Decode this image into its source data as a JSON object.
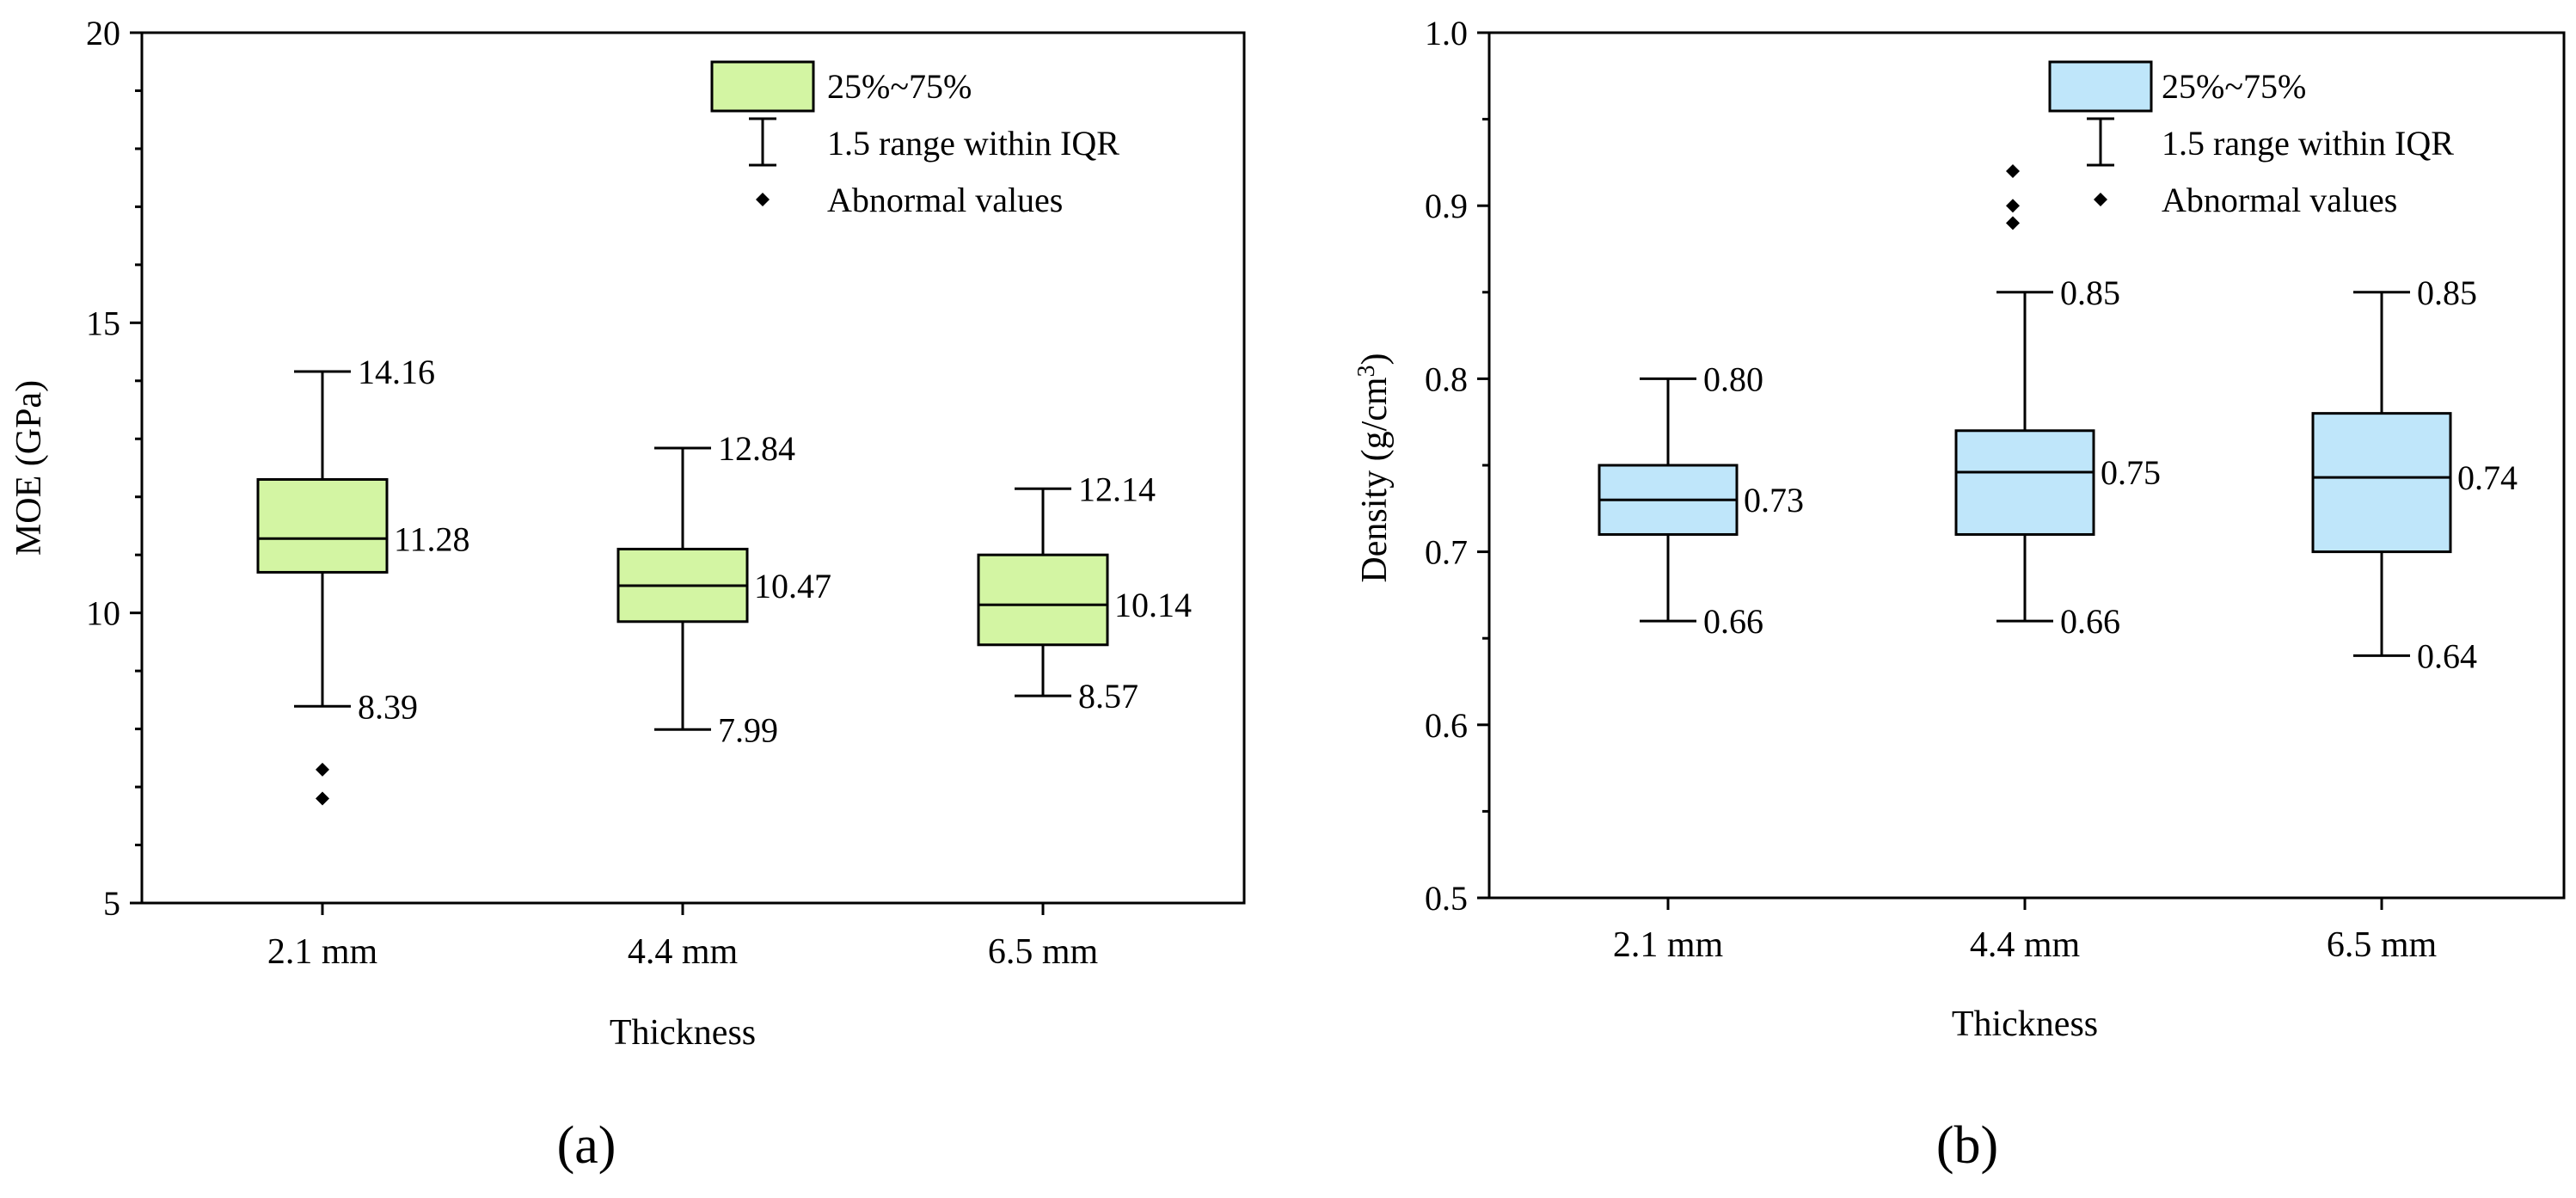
{
  "figure": {
    "panels": [
      {
        "label": "(a)"
      },
      {
        "label": "(b)"
      }
    ]
  },
  "chart_data": [
    {
      "type": "box",
      "panel": "(a)",
      "xlabel": "Thickness",
      "ylabel": "MOE (GPa)",
      "ylim": [
        5,
        20
      ],
      "yticks": [
        5,
        10,
        15,
        20
      ],
      "ytick_labels": [
        "5",
        "10",
        "15",
        "20"
      ],
      "categories": [
        "2.1 mm",
        "4.4 mm",
        "6.5 mm"
      ],
      "box_color": "#d3f5a3",
      "boxes": [
        {
          "category": "2.1 mm",
          "q1": 10.7,
          "median": 11.28,
          "q3": 12.3,
          "whisker_low": 8.39,
          "whisker_high": 14.16,
          "outliers": [
            7.3,
            6.8
          ],
          "labels": {
            "high": "14.16",
            "median": "11.28",
            "low": "8.39"
          }
        },
        {
          "category": "4.4 mm",
          "q1": 9.85,
          "median": 10.47,
          "q3": 11.1,
          "whisker_low": 7.99,
          "whisker_high": 12.84,
          "outliers": [],
          "labels": {
            "high": "12.84",
            "median": "10.47",
            "low": "7.99"
          }
        },
        {
          "category": "6.5 mm",
          "q1": 9.45,
          "median": 10.14,
          "q3": 11.0,
          "whisker_low": 8.57,
          "whisker_high": 12.14,
          "outliers": [],
          "labels": {
            "high": "12.14",
            "median": "10.14",
            "low": "8.57"
          }
        }
      ],
      "legend": {
        "position": "top-right",
        "box_label": "25%~75%",
        "whisker_label": "1.5 range within IQR",
        "outlier_label": "Abnormal values"
      }
    },
    {
      "type": "box",
      "panel": "(b)",
      "xlabel": "Thickness",
      "ylabel_prefix": "Density (g/cm",
      "ylabel_sup": "3",
      "ylabel_suffix": ")",
      "ylim": [
        0.5,
        1.0
      ],
      "yticks": [
        0.5,
        0.6,
        0.7,
        0.8,
        0.9,
        1.0
      ],
      "ytick_labels": [
        "0.5",
        "0.6",
        "0.7",
        "0.8",
        "0.9",
        "1.0"
      ],
      "categories": [
        "2.1 mm",
        "4.4 mm",
        "6.5 mm"
      ],
      "box_color": "#bfe6fa",
      "boxes": [
        {
          "category": "2.1 mm",
          "q1": 0.71,
          "median": 0.73,
          "q3": 0.75,
          "whisker_low": 0.66,
          "whisker_high": 0.8,
          "outliers": [],
          "labels": {
            "high": "0.80",
            "median": "0.73",
            "low": "0.66"
          }
        },
        {
          "category": "4.4 mm",
          "q1": 0.71,
          "median": 0.746,
          "q3": 0.77,
          "whisker_low": 0.66,
          "whisker_high": 0.85,
          "outliers": [
            0.92,
            0.9,
            0.89
          ],
          "labels": {
            "high": "0.85",
            "median": "0.75",
            "low": "0.66"
          }
        },
        {
          "category": "6.5 mm",
          "q1": 0.7,
          "median": 0.743,
          "q3": 0.78,
          "whisker_low": 0.64,
          "whisker_high": 0.85,
          "outliers": [],
          "labels": {
            "high": "0.85",
            "median": "0.74",
            "low": "0.64"
          }
        }
      ],
      "legend": {
        "position": "top-right",
        "box_label": "25%~75%",
        "whisker_label": "1.5 range within IQR",
        "outlier_label": "Abnormal values"
      }
    }
  ]
}
